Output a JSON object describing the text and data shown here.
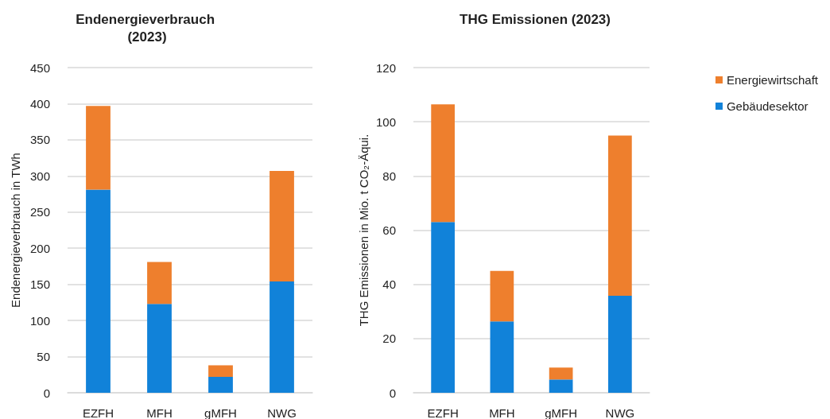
{
  "chart_data": [
    {
      "type": "bar",
      "title": "Endenergieverbrauch (2023)",
      "ylabel": "Endenergieverbrauch in TWh",
      "categories": [
        "EZFH",
        "MFH",
        "gMFH",
        "NWG"
      ],
      "stacked": true,
      "series": [
        {
          "color": "#1182d9",
          "values": [
            281,
            123,
            22,
            154
          ]
        },
        {
          "color": "#ee7f2d",
          "values": [
            116,
            58,
            16,
            153
          ]
        }
      ],
      "ylim": [
        0,
        450
      ],
      "yticks": [
        0,
        50,
        100,
        150,
        200,
        250,
        300,
        350,
        400,
        450
      ],
      "grid": "y",
      "legend": false
    },
    {
      "type": "bar",
      "title": "THG Emissionen (2023)",
      "ylabel": "THG Emissionen in Mio. t CO₂-Äqui.",
      "categories": [
        "EZFH",
        "MFH",
        "gMFH",
        "NWG"
      ],
      "stacked": true,
      "series": [
        {
          "name": "Gebäudesektor",
          "color": "#1182d9",
          "values": [
            63,
            26.3,
            4.9,
            35.8
          ]
        },
        {
          "name": "Energiewirtschaft",
          "color": "#ee7f2d",
          "values": [
            43.4,
            18.7,
            4.4,
            59.1
          ]
        }
      ],
      "ylim": [
        0,
        120
      ],
      "yticks": [
        0,
        20,
        40,
        60,
        80,
        100,
        120
      ],
      "grid": "y",
      "legend": "right"
    }
  ]
}
